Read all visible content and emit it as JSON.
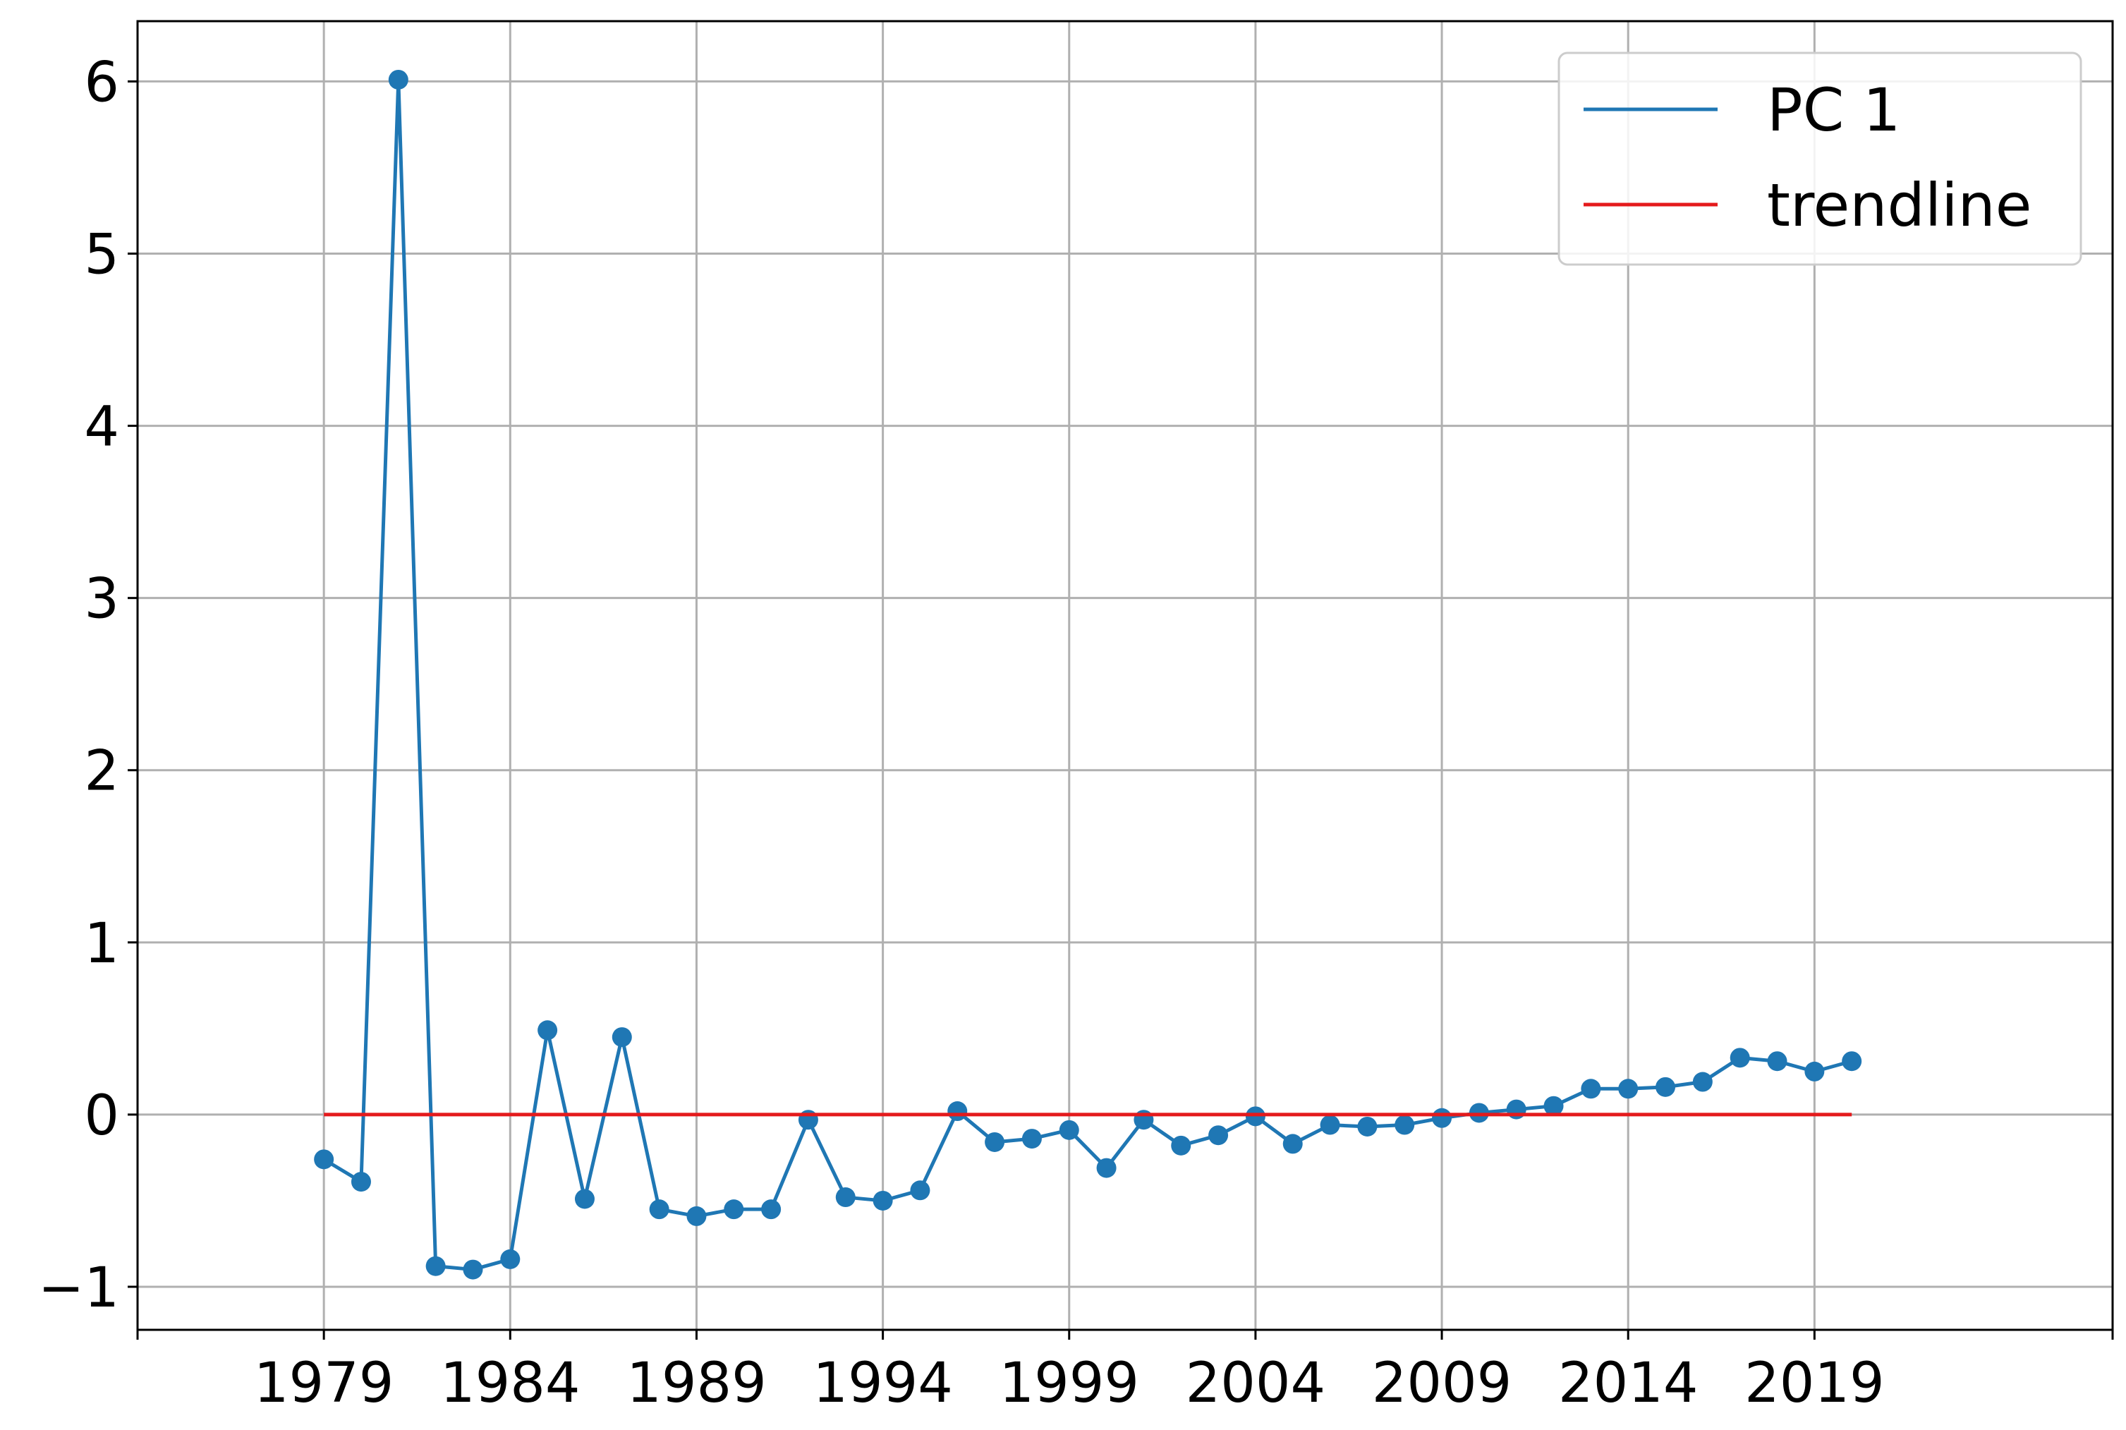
{
  "chart_data": {
    "type": "line",
    "title": "",
    "xlabel": "",
    "ylabel": "",
    "x": [
      1979,
      1980,
      1981,
      1982,
      1983,
      1984,
      1985,
      1986,
      1987,
      1988,
      1989,
      1990,
      1991,
      1992,
      1993,
      1994,
      1995,
      1996,
      1997,
      1998,
      1999,
      2000,
      2001,
      2002,
      2003,
      2004,
      2005,
      2006,
      2007,
      2008,
      2009,
      2010,
      2011,
      2012,
      2013,
      2014,
      2015,
      2016,
      2017,
      2018,
      2019,
      2020
    ],
    "xlim": [
      1974,
      2027
    ],
    "ylim": [
      -1.25,
      6.35
    ],
    "xticks": [
      1974,
      1979,
      1984,
      1989,
      1994,
      1999,
      2004,
      2009,
      2014,
      2019,
      2027
    ],
    "xtick_labels": [
      "",
      "1979",
      "1984",
      "1989",
      "1994",
      "1999",
      "2004",
      "2009",
      "2014",
      "2019",
      ""
    ],
    "yticks": [
      -1,
      0,
      1,
      2,
      3,
      4,
      5,
      6
    ],
    "ytick_labels": [
      "−1",
      "0",
      "1",
      "2",
      "3",
      "4",
      "5",
      "6"
    ],
    "grid": true,
    "legend_position": "top-right",
    "series": [
      {
        "name": "PC 1",
        "color": "#1f77b4",
        "markers": true,
        "values": [
          -0.26,
          -0.39,
          6.01,
          -0.88,
          -0.9,
          -0.84,
          0.49,
          -0.49,
          0.45,
          -0.55,
          -0.59,
          -0.55,
          -0.55,
          -0.03,
          -0.48,
          -0.5,
          -0.44,
          0.02,
          -0.16,
          -0.14,
          -0.09,
          -0.31,
          -0.03,
          -0.18,
          -0.12,
          -0.01,
          -0.17,
          -0.06,
          -0.07,
          -0.06,
          -0.02,
          0.01,
          0.03,
          0.05,
          0.15,
          0.15,
          0.16,
          0.19,
          0.33,
          0.31,
          0.25,
          0.31
        ]
      },
      {
        "name": "trendline",
        "color": "#e41a1c",
        "markers": false,
        "x": [
          1979,
          2020
        ],
        "values": [
          0,
          0
        ]
      }
    ]
  }
}
